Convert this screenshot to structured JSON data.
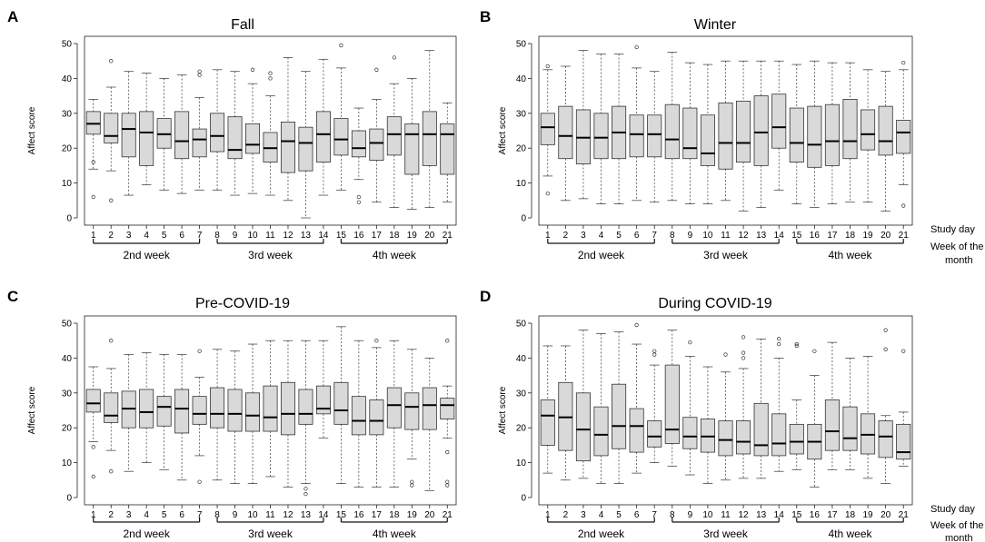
{
  "side_labels": {
    "study_day": "Study day",
    "week_of_month_line1": "Week of the",
    "week_of_month_line2": "month"
  },
  "chart_data": [
    {
      "type": "boxplot",
      "letter": "A",
      "title": "Fall",
      "ylabel": "Affect score",
      "xlabel": "Study day",
      "ylim": [
        0,
        50
      ],
      "yticks": [
        0,
        10,
        20,
        30,
        40,
        50
      ],
      "categories": [
        "1",
        "2",
        "3",
        "4",
        "5",
        "6",
        "7",
        "8",
        "9",
        "10",
        "11",
        "12",
        "13",
        "14",
        "15",
        "16",
        "17",
        "18",
        "19",
        "20",
        "21"
      ],
      "week_groups": [
        {
          "label": "2nd week",
          "from_day": 1,
          "to_day": 7
        },
        {
          "label": "3rd week",
          "from_day": 8,
          "to_day": 14
        },
        {
          "label": "4th week",
          "from_day": 15,
          "to_day": 21
        }
      ],
      "boxes": [
        {
          "day": 1,
          "min": 14,
          "q1": 24,
          "median": 27,
          "q3": 30.5,
          "max": 34,
          "outliers": [
            6,
            16
          ]
        },
        {
          "day": 2,
          "min": 13.5,
          "q1": 21.5,
          "median": 23.5,
          "q3": 30,
          "max": 37.5,
          "outliers": [
            5,
            45
          ]
        },
        {
          "day": 3,
          "min": 6.5,
          "q1": 17.5,
          "median": 25.5,
          "q3": 30,
          "max": 42,
          "outliers": []
        },
        {
          "day": 4,
          "min": 9.5,
          "q1": 15,
          "median": 24.5,
          "q3": 30.5,
          "max": 41.5,
          "outliers": []
        },
        {
          "day": 5,
          "min": 8,
          "q1": 20,
          "median": 24,
          "q3": 28.5,
          "max": 40,
          "outliers": []
        },
        {
          "day": 6,
          "min": 7,
          "q1": 17,
          "median": 22,
          "q3": 30.5,
          "max": 41,
          "outliers": []
        },
        {
          "day": 7,
          "min": 8,
          "q1": 17.5,
          "median": 22.5,
          "q3": 25.5,
          "max": 34.5,
          "outliers": [
            42,
            41
          ]
        },
        {
          "day": 8,
          "min": 8,
          "q1": 19,
          "median": 23.5,
          "q3": 30,
          "max": 42.5,
          "outliers": []
        },
        {
          "day": 9,
          "min": 6.5,
          "q1": 17,
          "median": 19.5,
          "q3": 29,
          "max": 42,
          "outliers": []
        },
        {
          "day": 10,
          "min": 7,
          "q1": 18.5,
          "median": 21,
          "q3": 27,
          "max": 38.5,
          "outliers": [
            42.5
          ]
        },
        {
          "day": 11,
          "min": 6.5,
          "q1": 16,
          "median": 20,
          "q3": 24.5,
          "max": 35,
          "outliers": [
            40,
            41.5
          ]
        },
        {
          "day": 12,
          "min": 5,
          "q1": 13,
          "median": 22,
          "q3": 27.5,
          "max": 46,
          "outliers": []
        },
        {
          "day": 13,
          "min": 0,
          "q1": 13.5,
          "median": 21.5,
          "q3": 26,
          "max": 42,
          "outliers": []
        },
        {
          "day": 14,
          "min": 6.5,
          "q1": 16,
          "median": 24,
          "q3": 30.5,
          "max": 45.5,
          "outliers": []
        },
        {
          "day": 15,
          "min": 8,
          "q1": 18,
          "median": 22.5,
          "q3": 28.5,
          "max": 43,
          "outliers": [
            49.5
          ]
        },
        {
          "day": 16,
          "min": 11,
          "q1": 17.5,
          "median": 20,
          "q3": 25,
          "max": 31.5,
          "outliers": [
            6,
            4.5
          ]
        },
        {
          "day": 17,
          "min": 4.5,
          "q1": 16.5,
          "median": 21.5,
          "q3": 25.5,
          "max": 34,
          "outliers": [
            42.5
          ]
        },
        {
          "day": 18,
          "min": 3,
          "q1": 18,
          "median": 24,
          "q3": 29,
          "max": 38.5,
          "outliers": [
            46
          ]
        },
        {
          "day": 19,
          "min": 2.5,
          "q1": 12.5,
          "median": 24,
          "q3": 27,
          "max": 40,
          "outliers": []
        },
        {
          "day": 20,
          "min": 3,
          "q1": 15,
          "median": 24,
          "q3": 30.5,
          "max": 48,
          "outliers": []
        },
        {
          "day": 21,
          "min": 4.5,
          "q1": 12.5,
          "median": 24,
          "q3": 27,
          "max": 33,
          "outliers": []
        }
      ]
    },
    {
      "type": "boxplot",
      "letter": "B",
      "title": "Winter",
      "ylabel": "Affect score",
      "xlabel": "Study day",
      "ylim": [
        0,
        50
      ],
      "yticks": [
        0,
        10,
        20,
        30,
        40,
        50
      ],
      "categories": [
        "1",
        "2",
        "3",
        "4",
        "5",
        "6",
        "7",
        "8",
        "9",
        "10",
        "11",
        "12",
        "13",
        "14",
        "15",
        "16",
        "17",
        "18",
        "19",
        "20",
        "21"
      ],
      "week_groups": [
        {
          "label": "2nd week",
          "from_day": 1,
          "to_day": 7
        },
        {
          "label": "3rd week",
          "from_day": 8,
          "to_day": 14
        },
        {
          "label": "4th week",
          "from_day": 15,
          "to_day": 21
        }
      ],
      "boxes": [
        {
          "day": 1,
          "min": 12,
          "q1": 21,
          "median": 26,
          "q3": 30,
          "max": 42.5,
          "outliers": [
            7,
            43.5
          ]
        },
        {
          "day": 2,
          "min": 5,
          "q1": 17,
          "median": 23.5,
          "q3": 32,
          "max": 43.5,
          "outliers": []
        },
        {
          "day": 3,
          "min": 5.5,
          "q1": 15.5,
          "median": 23,
          "q3": 31,
          "max": 48,
          "outliers": []
        },
        {
          "day": 4,
          "min": 4,
          "q1": 17,
          "median": 23,
          "q3": 30,
          "max": 47,
          "outliers": []
        },
        {
          "day": 5,
          "min": 4,
          "q1": 17,
          "median": 24.5,
          "q3": 32,
          "max": 47,
          "outliers": []
        },
        {
          "day": 6,
          "min": 5,
          "q1": 17.5,
          "median": 24,
          "q3": 29.5,
          "max": 43,
          "outliers": [
            49
          ]
        },
        {
          "day": 7,
          "min": 4.5,
          "q1": 17.5,
          "median": 24,
          "q3": 29.5,
          "max": 42,
          "outliers": []
        },
        {
          "day": 8,
          "min": 5,
          "q1": 17,
          "median": 22.5,
          "q3": 32.5,
          "max": 47.5,
          "outliers": []
        },
        {
          "day": 9,
          "min": 4,
          "q1": 17,
          "median": 20,
          "q3": 31.5,
          "max": 44.5,
          "outliers": []
        },
        {
          "day": 10,
          "min": 4,
          "q1": 15,
          "median": 18.5,
          "q3": 29.5,
          "max": 44,
          "outliers": []
        },
        {
          "day": 11,
          "min": 5,
          "q1": 14,
          "median": 21.5,
          "q3": 33,
          "max": 45,
          "outliers": []
        },
        {
          "day": 12,
          "min": 2,
          "q1": 16,
          "median": 21.5,
          "q3": 33.5,
          "max": 45,
          "outliers": []
        },
        {
          "day": 13,
          "min": 3,
          "q1": 15,
          "median": 24.5,
          "q3": 35,
          "max": 45,
          "outliers": []
        },
        {
          "day": 14,
          "min": 8,
          "q1": 20,
          "median": 26,
          "q3": 35.5,
          "max": 45,
          "outliers": []
        },
        {
          "day": 15,
          "min": 4,
          "q1": 16,
          "median": 21.5,
          "q3": 31.5,
          "max": 44,
          "outliers": []
        },
        {
          "day": 16,
          "min": 3,
          "q1": 14.5,
          "median": 21,
          "q3": 32,
          "max": 45,
          "outliers": []
        },
        {
          "day": 17,
          "min": 4,
          "q1": 15,
          "median": 22,
          "q3": 32.5,
          "max": 44.5,
          "outliers": []
        },
        {
          "day": 18,
          "min": 4.5,
          "q1": 17,
          "median": 22,
          "q3": 34,
          "max": 44.5,
          "outliers": []
        },
        {
          "day": 19,
          "min": 4.5,
          "q1": 19.5,
          "median": 24,
          "q3": 31,
          "max": 42.5,
          "outliers": []
        },
        {
          "day": 20,
          "min": 2,
          "q1": 18,
          "median": 22,
          "q3": 32,
          "max": 42,
          "outliers": []
        },
        {
          "day": 21,
          "min": 9.5,
          "q1": 18.5,
          "median": 24.5,
          "q3": 28,
          "max": 42.5,
          "outliers": [
            3.5,
            44.5
          ]
        }
      ]
    },
    {
      "type": "boxplot",
      "letter": "C",
      "title": "Pre-COVID-19",
      "ylabel": "Affect score",
      "xlabel": "Study day",
      "ylim": [
        0,
        50
      ],
      "yticks": [
        0,
        10,
        20,
        30,
        40,
        50
      ],
      "categories": [
        "1",
        "2",
        "3",
        "4",
        "5",
        "6",
        "7",
        "8",
        "9",
        "10",
        "11",
        "12",
        "13",
        "14",
        "15",
        "16",
        "17",
        "18",
        "19",
        "20",
        "21"
      ],
      "week_groups": [
        {
          "label": "2nd week",
          "from_day": 1,
          "to_day": 7
        },
        {
          "label": "3rd week",
          "from_day": 8,
          "to_day": 14
        },
        {
          "label": "4th week",
          "from_day": 15,
          "to_day": 21
        }
      ],
      "boxes": [
        {
          "day": 1,
          "min": 16,
          "q1": 24.5,
          "median": 27,
          "q3": 31,
          "max": 37.5,
          "outliers": [
            6,
            14.5
          ]
        },
        {
          "day": 2,
          "min": 13.5,
          "q1": 21.5,
          "median": 23.5,
          "q3": 30,
          "max": 37,
          "outliers": [
            7.5,
            45
          ]
        },
        {
          "day": 3,
          "min": 7.5,
          "q1": 20,
          "median": 25.5,
          "q3": 30.5,
          "max": 41,
          "outliers": []
        },
        {
          "day": 4,
          "min": 10,
          "q1": 20,
          "median": 24.5,
          "q3": 31,
          "max": 41.5,
          "outliers": []
        },
        {
          "day": 5,
          "min": 8,
          "q1": 20.5,
          "median": 26,
          "q3": 29,
          "max": 41,
          "outliers": []
        },
        {
          "day": 6,
          "min": 5,
          "q1": 18.5,
          "median": 25.5,
          "q3": 31,
          "max": 41,
          "outliers": []
        },
        {
          "day": 7,
          "min": 12,
          "q1": 21,
          "median": 24,
          "q3": 29,
          "max": 34.5,
          "outliers": [
            4.5,
            42
          ]
        },
        {
          "day": 8,
          "min": 5,
          "q1": 20,
          "median": 24,
          "q3": 31.5,
          "max": 42.5,
          "outliers": []
        },
        {
          "day": 9,
          "min": 4,
          "q1": 19,
          "median": 24,
          "q3": 31,
          "max": 42,
          "outliers": []
        },
        {
          "day": 10,
          "min": 4,
          "q1": 19,
          "median": 23.5,
          "q3": 30,
          "max": 44,
          "outliers": []
        },
        {
          "day": 11,
          "min": 6,
          "q1": 19,
          "median": 23,
          "q3": 32,
          "max": 45,
          "outliers": []
        },
        {
          "day": 12,
          "min": 3,
          "q1": 18,
          "median": 24,
          "q3": 33,
          "max": 45,
          "outliers": []
        },
        {
          "day": 13,
          "min": 4,
          "q1": 21,
          "median": 24,
          "q3": 31,
          "max": 45,
          "outliers": [
            1,
            2.5
          ]
        },
        {
          "day": 14,
          "min": 17,
          "q1": 24,
          "median": 25.5,
          "q3": 32,
          "max": 45,
          "outliers": []
        },
        {
          "day": 15,
          "min": 4,
          "q1": 21,
          "median": 25,
          "q3": 33,
          "max": 49,
          "outliers": []
        },
        {
          "day": 16,
          "min": 3,
          "q1": 18,
          "median": 22,
          "q3": 29,
          "max": 45,
          "outliers": []
        },
        {
          "day": 17,
          "min": 3,
          "q1": 18,
          "median": 22,
          "q3": 28,
          "max": 43,
          "outliers": [
            45
          ]
        },
        {
          "day": 18,
          "min": 3,
          "q1": 20,
          "median": 26.5,
          "q3": 31.5,
          "max": 45,
          "outliers": []
        },
        {
          "day": 19,
          "min": 11,
          "q1": 19.5,
          "median": 26,
          "q3": 30,
          "max": 42.5,
          "outliers": [
            3.5,
            4.5
          ]
        },
        {
          "day": 20,
          "min": 2,
          "q1": 19.5,
          "median": 26.5,
          "q3": 31.5,
          "max": 40,
          "outliers": []
        },
        {
          "day": 21,
          "min": 17,
          "q1": 22.5,
          "median": 26.5,
          "q3": 28.5,
          "max": 32,
          "outliers": [
            3.5,
            4.5,
            13,
            45
          ]
        }
      ]
    },
    {
      "type": "boxplot",
      "letter": "D",
      "title": "During COVID-19",
      "ylabel": "Affect score",
      "xlabel": "Study day",
      "ylim": [
        0,
        50
      ],
      "yticks": [
        0,
        10,
        20,
        30,
        40,
        50
      ],
      "categories": [
        "1",
        "2",
        "3",
        "4",
        "5",
        "6",
        "7",
        "8",
        "9",
        "10",
        "11",
        "12",
        "13",
        "14",
        "15",
        "16",
        "17",
        "18",
        "19",
        "20",
        "21"
      ],
      "week_groups": [
        {
          "label": "2nd week",
          "from_day": 1,
          "to_day": 7
        },
        {
          "label": "3rd week",
          "from_day": 8,
          "to_day": 14
        },
        {
          "label": "4th week",
          "from_day": 15,
          "to_day": 21
        }
      ],
      "boxes": [
        {
          "day": 1,
          "min": 7,
          "q1": 15,
          "median": 23.5,
          "q3": 28,
          "max": 43.5,
          "outliers": []
        },
        {
          "day": 2,
          "min": 5,
          "q1": 13.5,
          "median": 23,
          "q3": 33,
          "max": 43.5,
          "outliers": []
        },
        {
          "day": 3,
          "min": 5.5,
          "q1": 10.5,
          "median": 19.5,
          "q3": 30,
          "max": 48,
          "outliers": []
        },
        {
          "day": 4,
          "min": 4,
          "q1": 12,
          "median": 18,
          "q3": 26,
          "max": 47,
          "outliers": []
        },
        {
          "day": 5,
          "min": 4,
          "q1": 14,
          "median": 20.5,
          "q3": 32.5,
          "max": 47.5,
          "outliers": []
        },
        {
          "day": 6,
          "min": 7,
          "q1": 13,
          "median": 20.5,
          "q3": 25.5,
          "max": 44,
          "outliers": [
            49.5
          ]
        },
        {
          "day": 7,
          "min": 10,
          "q1": 14.5,
          "median": 17.5,
          "q3": 22,
          "max": 38,
          "outliers": [
            41,
            42
          ]
        },
        {
          "day": 8,
          "min": 9,
          "q1": 15.5,
          "median": 19.5,
          "q3": 38,
          "max": 48,
          "outliers": []
        },
        {
          "day": 9,
          "min": 6.5,
          "q1": 14,
          "median": 17.5,
          "q3": 23,
          "max": 40.5,
          "outliers": [
            44.5
          ]
        },
        {
          "day": 10,
          "min": 4,
          "q1": 13,
          "median": 17.5,
          "q3": 22.5,
          "max": 37.5,
          "outliers": []
        },
        {
          "day": 11,
          "min": 5,
          "q1": 12,
          "median": 16.5,
          "q3": 22,
          "max": 36,
          "outliers": [
            41
          ]
        },
        {
          "day": 12,
          "min": 5.5,
          "q1": 12.5,
          "median": 16,
          "q3": 22,
          "max": 37,
          "outliers": [
            40,
            41.5,
            46
          ]
        },
        {
          "day": 13,
          "min": 5.5,
          "q1": 12,
          "median": 15,
          "q3": 27,
          "max": 45.5,
          "outliers": []
        },
        {
          "day": 14,
          "min": 7.5,
          "q1": 12,
          "median": 15.5,
          "q3": 24,
          "max": 40,
          "outliers": [
            44,
            45.5
          ]
        },
        {
          "day": 15,
          "min": 8,
          "q1": 12.5,
          "median": 16,
          "q3": 21,
          "max": 28,
          "outliers": [
            43.5,
            44
          ]
        },
        {
          "day": 16,
          "min": 3,
          "q1": 11,
          "median": 16,
          "q3": 21,
          "max": 35,
          "outliers": [
            42
          ]
        },
        {
          "day": 17,
          "min": 8,
          "q1": 13.5,
          "median": 19,
          "q3": 28,
          "max": 44.5,
          "outliers": []
        },
        {
          "day": 18,
          "min": 8,
          "q1": 13.5,
          "median": 17,
          "q3": 26,
          "max": 40,
          "outliers": []
        },
        {
          "day": 19,
          "min": 5.5,
          "q1": 12.5,
          "median": 18,
          "q3": 24,
          "max": 40.5,
          "outliers": []
        },
        {
          "day": 20,
          "min": 4,
          "q1": 11.5,
          "median": 17.5,
          "q3": 22,
          "max": 23.5,
          "outliers": [
            42.5,
            48
          ]
        },
        {
          "day": 21,
          "min": 9,
          "q1": 11,
          "median": 13,
          "q3": 21,
          "max": 24.5,
          "outliers": [
            42
          ]
        }
      ]
    }
  ]
}
